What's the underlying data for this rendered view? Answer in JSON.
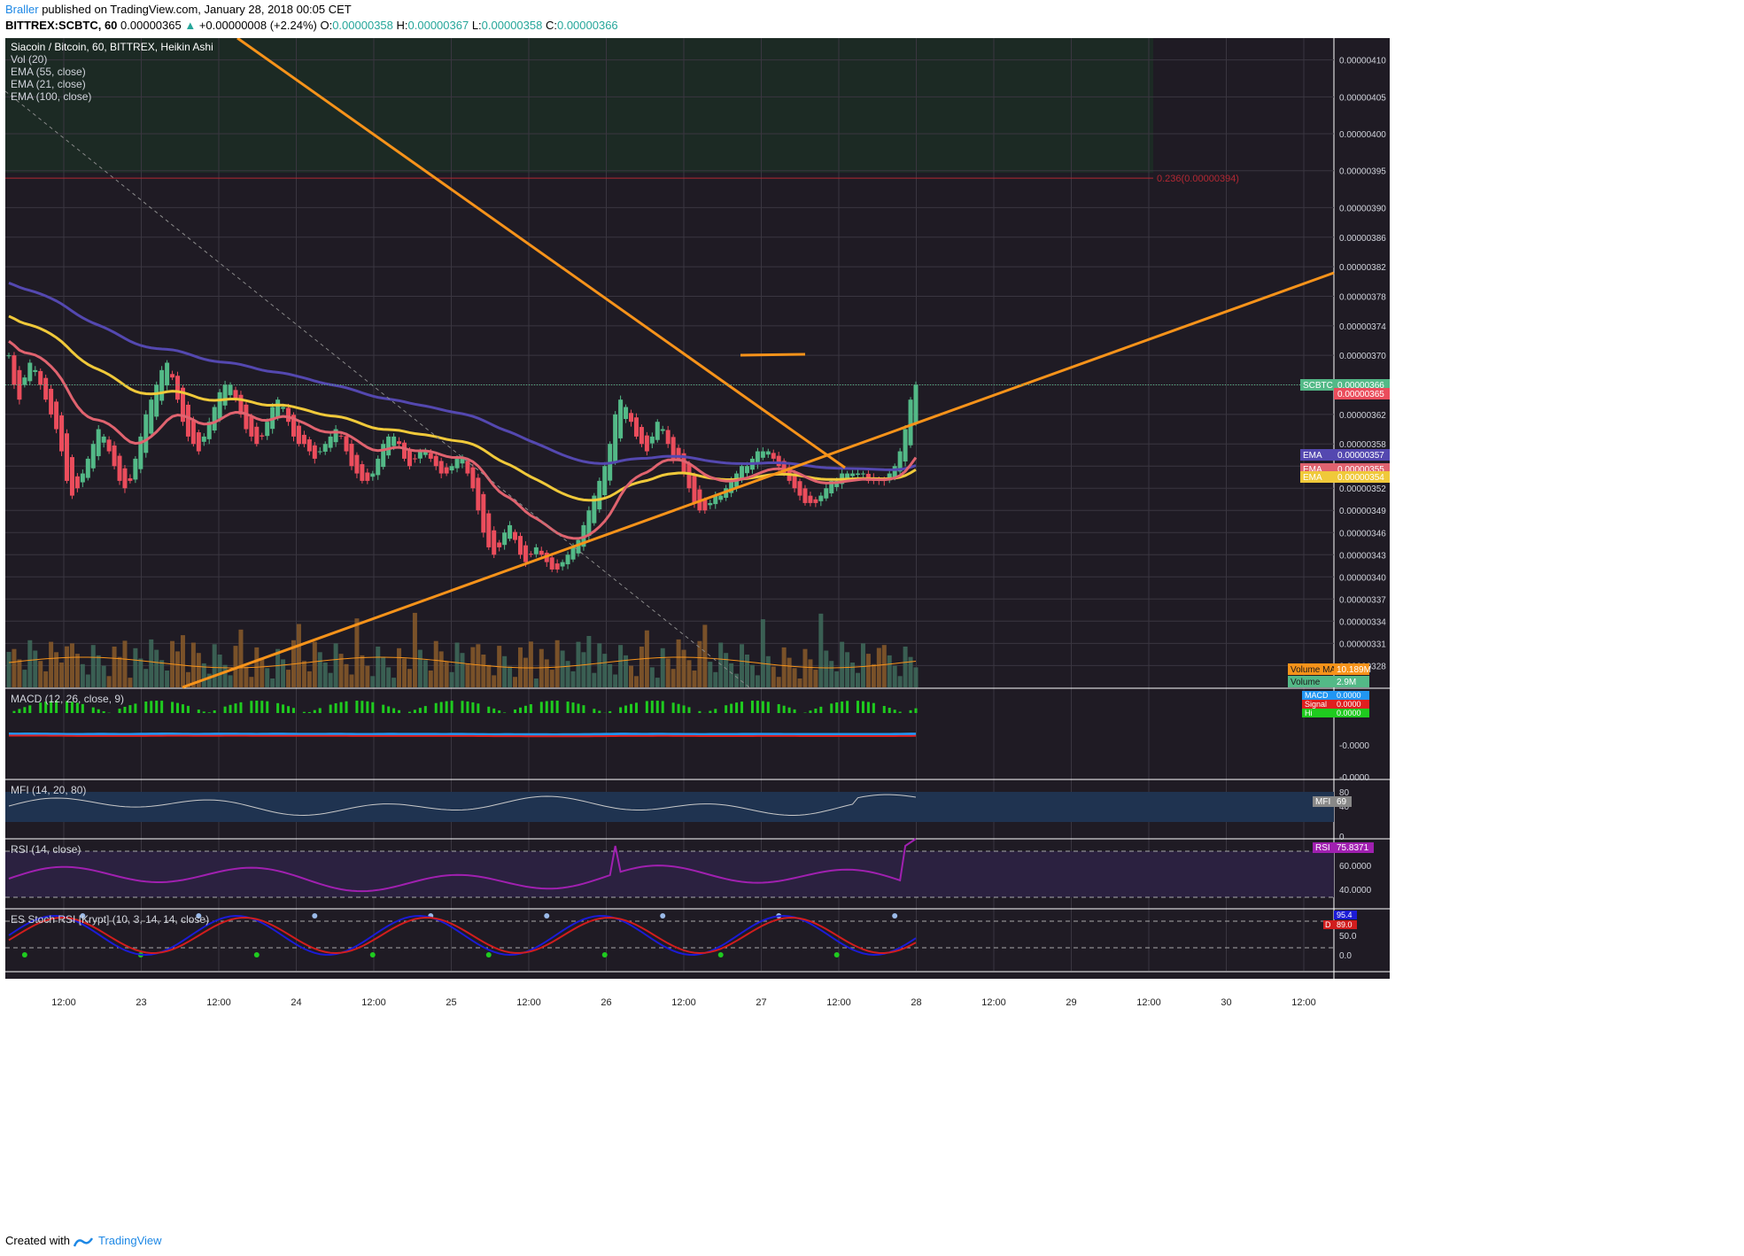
{
  "header": {
    "author": "Braller",
    "published": "published on TradingView.com, January 28, 2018 00:05 CET",
    "symbol": "BITTREX:SCBTC, 60",
    "last": "0.00000365",
    "change": "+0.00000008 (+2.24%)",
    "o_label": "O:",
    "o": "0.00000358",
    "h_label": "H:",
    "h": "0.00000367",
    "l_label": "L:",
    "l": "0.00000358",
    "c_label": "C:",
    "c": "0.00000366"
  },
  "footer": {
    "created": "Created with",
    "brand": "TradingView"
  },
  "colors": {
    "bg": "#1f1b24",
    "grid": "#3a3640",
    "axis_text": "#d1d4dc",
    "up": "#53b987",
    "down": "#eb4d5c",
    "ema55": "#f0c93a",
    "ema21": "#e0636f",
    "ema100": "#5448b0",
    "trendline": "#f7931a",
    "fib": "#b22833",
    "macd": "#2196f3",
    "signal": "#e01f1f",
    "hist": "#1fcb1f",
    "rsi": "#a020b0",
    "mfi": "#c9c9c9",
    "stoch_k": "#1b1bd6",
    "stoch_d": "#d11d1d"
  },
  "chart_data": {
    "type": "candlestick",
    "title": "Siacoin / Bitcoin, 60, BITTREX, Heikin Ashi",
    "indicator_labels": [
      "Vol (20)",
      "EMA (55, close)",
      "EMA (21, close)",
      "EMA (100, close)"
    ],
    "x_ticks": [
      "12:00",
      "23",
      "12:00",
      "24",
      "12:00",
      "25",
      "12:00",
      "26",
      "12:00",
      "27",
      "12:00",
      "28",
      "12:00",
      "29",
      "12:00",
      "30",
      "12:00"
    ],
    "y_ticks": [
      "0.00000410",
      "0.00000405",
      "0.00000400",
      "0.00000395",
      "0.00000390",
      "0.00000386",
      "0.00000382",
      "0.00000378",
      "0.00000374",
      "0.00000370",
      "0.00000366",
      "0.00000362",
      "0.00000358",
      "0.00000355",
      "0.00000352",
      "0.00000349",
      "0.00000346",
      "0.00000343",
      "0.00000340",
      "0.00000337",
      "0.00000334",
      "0.00000331",
      "0.00000328"
    ],
    "ylim": [
      3.26e-06,
      4.12e-06
    ],
    "fib_label": "0.236(0.00000394)",
    "fib_level": 3.94e-06,
    "price_tags": [
      {
        "label": "SCBTC",
        "value": "0.00000366",
        "color": "#53b987"
      },
      {
        "label": "",
        "value": "0.00000365",
        "color": "#eb4d5c"
      },
      {
        "label": "EMA",
        "value": "0.00000357",
        "color": "#5448b0"
      },
      {
        "label": "EMA",
        "value": "0.00000355",
        "color": "#e0636f"
      },
      {
        "label": "EMA",
        "value": "0.00000354",
        "color": "#f0c93a"
      }
    ],
    "volume_tags": [
      {
        "label": "Volume MA",
        "value": "10.189M",
        "color": "#f7931a"
      },
      {
        "label": "Volume",
        "value": "2.9M",
        "color": "#53b987"
      }
    ],
    "candle_closes": [
      3.7e-06,
      3.66e-06,
      3.64e-06,
      3.67e-06,
      3.69e-06,
      3.68e-06,
      3.66e-06,
      3.64e-06,
      3.62e-06,
      3.6e-06,
      3.57e-06,
      3.53e-06,
      3.51e-06,
      3.52e-06,
      3.54e-06,
      3.56e-06,
      3.58e-06,
      3.6e-06,
      3.59e-06,
      3.57e-06,
      3.55e-06,
      3.53e-06,
      3.52e-06,
      3.53e-06,
      3.56e-06,
      3.59e-06,
      3.62e-06,
      3.64e-06,
      3.66e-06,
      3.68e-06,
      3.69e-06,
      3.67e-06,
      3.64e-06,
      3.61e-06,
      3.59e-06,
      3.58e-06,
      3.57e-06,
      3.59e-06,
      3.61e-06,
      3.63e-06,
      3.65e-06,
      3.66e-06,
      3.66e-06,
      3.64e-06,
      3.62e-06,
      3.6e-06,
      3.59e-06,
      3.58e-06,
      3.59e-06,
      3.61e-06,
      3.63e-06,
      3.64e-06,
      3.63e-06,
      3.61e-06,
      3.59e-06,
      3.58e-06,
      3.58e-06,
      3.57e-06,
      3.56e-06,
      3.57e-06,
      3.58e-06,
      3.59e-06,
      3.6e-06,
      3.59e-06,
      3.57e-06,
      3.55e-06,
      3.54e-06,
      3.53e-06,
      3.53e-06,
      3.54e-06,
      3.56e-06,
      3.58e-06,
      3.59e-06,
      3.59e-06,
      3.58e-06,
      3.56e-06,
      3.55e-06,
      3.56e-06,
      3.57e-06,
      3.57e-06,
      3.56e-06,
      3.55e-06,
      3.54e-06,
      3.54e-06,
      3.55e-06,
      3.56e-06,
      3.56e-06,
      3.54e-06,
      3.52e-06,
      3.49e-06,
      3.46e-06,
      3.44e-06,
      3.43e-06,
      3.44e-06,
      3.46e-06,
      3.47e-06,
      3.45e-06,
      3.43e-06,
      3.42e-06,
      3.43e-06,
      3.44e-06,
      3.43e-06,
      3.42e-06,
      3.41e-06,
      3.41e-06,
      3.42e-06,
      3.43e-06,
      3.44e-06,
      3.45e-06,
      3.47e-06,
      3.49e-06,
      3.51e-06,
      3.53e-06,
      3.55e-06,
      3.58e-06,
      3.62e-06,
      3.64e-06,
      3.63e-06,
      3.61e-06,
      3.59e-06,
      3.58e-06,
      3.57e-06,
      3.59e-06,
      3.61e-06,
      3.6e-06,
      3.58e-06,
      3.56e-06,
      3.56e-06,
      3.54e-06,
      3.52e-06,
      3.5e-06,
      3.49e-06,
      3.49e-06,
      3.5e-06,
      3.51e-06,
      3.51e-06,
      3.52e-06,
      3.53e-06,
      3.54e-06,
      3.55e-06,
      3.55e-06,
      3.56e-06,
      3.57e-06,
      3.57e-06,
      3.57e-06,
      3.56e-06,
      3.55e-06,
      3.54e-06,
      3.53e-06,
      3.52e-06,
      3.51e-06,
      3.5e-06,
      3.5e-06,
      3.5e-06,
      3.51e-06,
      3.52e-06,
      3.53e-06,
      3.53e-06,
      3.54e-06,
      3.54e-06,
      3.54e-06,
      3.54e-06,
      3.54e-06,
      3.53e-06,
      3.53e-06,
      3.53e-06,
      3.53e-06,
      3.54e-06,
      3.55e-06,
      3.57e-06,
      3.6e-06,
      3.64e-06,
      3.66e-06
    ],
    "macd_label": "MACD (12, 26, close, 9)",
    "macd_ticks": [
      "0.0000",
      "-0.0000",
      "-0.0000"
    ],
    "macd_tags": [
      {
        "label": "MACD",
        "value": "0.0000",
        "color": "#2196f3"
      },
      {
        "label": "Signal",
        "value": "0.0000",
        "color": "#e01f1f"
      },
      {
        "label": "Hi",
        "value": "0.0000",
        "color": "#1fcb1f"
      }
    ],
    "mfi_label": "MFI (14, 20, 80)",
    "mfi_ticks": [
      "80",
      "40",
      "0"
    ],
    "mfi_tag": {
      "label": "MFI",
      "value": "69"
    },
    "rsi_label": "RSI (14, close)",
    "rsi_ticks": [
      "60.0000",
      "40.0000"
    ],
    "rsi_tag": {
      "label": "RSI",
      "value": "75.8371"
    },
    "stoch_label": "ES Stoch RSI [Krypt] (10, 3, 14, 14, close)",
    "stoch_ticks": [
      "50.0",
      "0.0"
    ],
    "stoch_tags": [
      {
        "label": "",
        "value": "95.4",
        "color": "#1b1bd6"
      },
      {
        "label": "D",
        "value": "89.0",
        "color": "#d11d1d"
      }
    ]
  }
}
